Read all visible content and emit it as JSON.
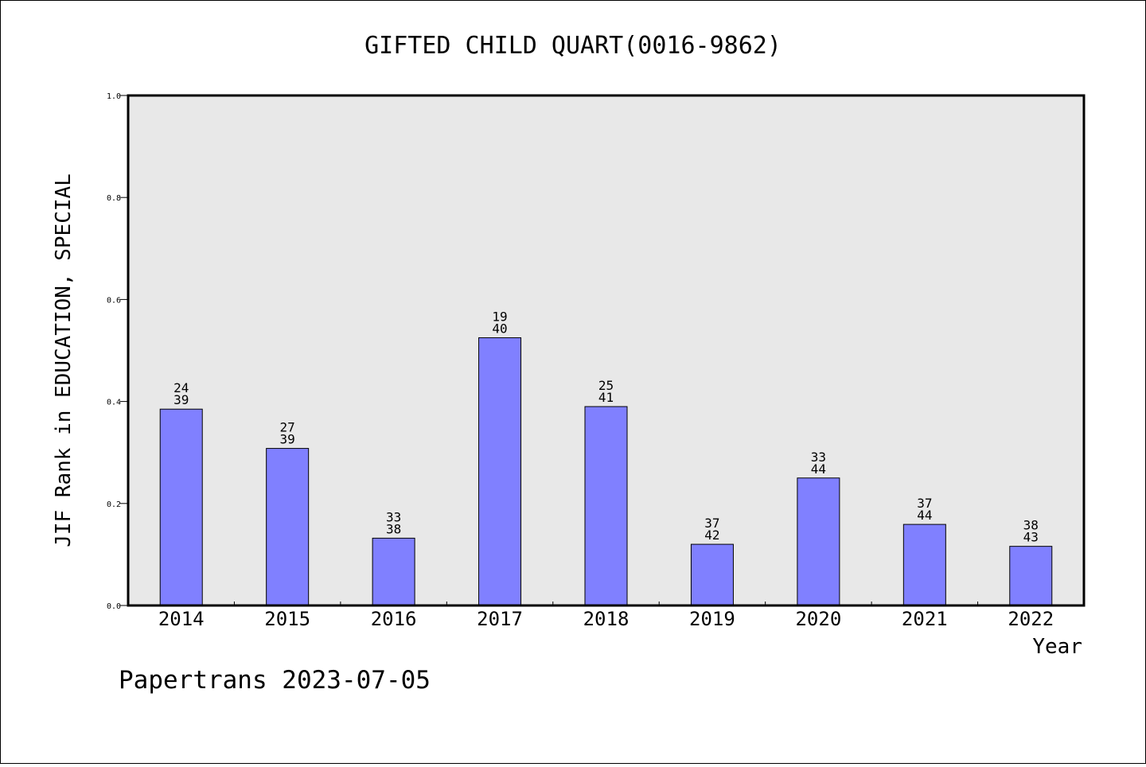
{
  "chart_data": {
    "type": "bar",
    "title": "GIFTED CHILD QUART(0016-9862)",
    "xlabel": "Year",
    "ylabel": "JIF Rank in EDUCATION, SPECIAL",
    "ylim": [
      0,
      1.0
    ],
    "yticks": [
      "0.0",
      "0.2",
      "0.4",
      "0.6",
      "0.8",
      "1.0"
    ],
    "categories": [
      "2014",
      "2015",
      "2016",
      "2017",
      "2018",
      "2019",
      "2020",
      "2021",
      "2022"
    ],
    "values": [
      0.385,
      0.308,
      0.132,
      0.525,
      0.39,
      0.12,
      0.25,
      0.159,
      0.116
    ],
    "labels_top": [
      "24",
      "27",
      "33",
      "19",
      "25",
      "37",
      "33",
      "37",
      "38"
    ],
    "labels_bottom": [
      "39",
      "39",
      "38",
      "40",
      "41",
      "42",
      "44",
      "44",
      "43"
    ],
    "bar_color": "#8080ff",
    "plot_background": "#e8e8e8",
    "grid": false,
    "legend": "none"
  },
  "footer": "Papertrans 2023-07-05"
}
